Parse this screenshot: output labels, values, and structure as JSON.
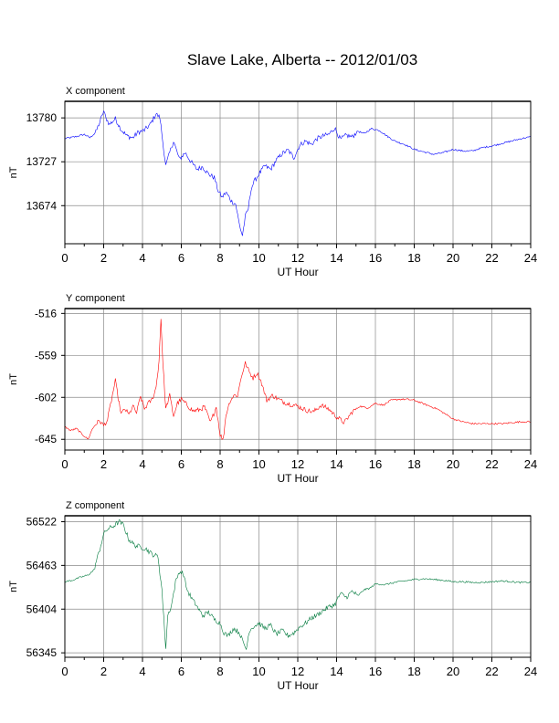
{
  "title": "Slave Lake, Alberta -- 2012/01/03",
  "chart_data": [
    {
      "type": "line",
      "panel_label": "X component",
      "xlabel": "UT Hour",
      "ylabel": "nT",
      "xlim": [
        0,
        24
      ],
      "xticks": [
        0,
        2,
        4,
        6,
        8,
        10,
        12,
        14,
        16,
        18,
        20,
        22,
        24
      ],
      "ylim": [
        13628,
        13800
      ],
      "yticks": [
        13674,
        13727,
        13780
      ],
      "grid": true,
      "color": "#0000ff",
      "series": [
        {
          "x": [
            0,
            0.5,
            1,
            1.3,
            1.6,
            1.8,
            2,
            2.1,
            2.3,
            2.6,
            2.9,
            3.2,
            3.5,
            3.8,
            4.1,
            4.4,
            4.7,
            4.9,
            5.05,
            5.2,
            5.4,
            5.6,
            5.9,
            6.2,
            6.5,
            6.8,
            7.1,
            7.4,
            7.7,
            7.9,
            8.1,
            8.3,
            8.6,
            8.8,
            9.0,
            9.15,
            9.3,
            9.45,
            9.6,
            9.8,
            10.0,
            10.3,
            10.6,
            10.9,
            11.2,
            11.5,
            11.8,
            12.1,
            12.4,
            12.7,
            13.0,
            13.3,
            13.6,
            13.9,
            14.2,
            14.5,
            14.8,
            15.1,
            15.4,
            15.8,
            16.2,
            16.6,
            17.0,
            17.5,
            18.0,
            18.5,
            19.0,
            19.5,
            20.0,
            20.5,
            21.0,
            21.5,
            22.0,
            22.5,
            23.0,
            23.5,
            24.0
          ],
          "values": [
            13755,
            13757,
            13760,
            13756,
            13763,
            13775,
            13788,
            13781,
            13772,
            13779,
            13766,
            13758,
            13756,
            13763,
            13765,
            13772,
            13785,
            13780,
            13750,
            13722,
            13738,
            13752,
            13730,
            13738,
            13727,
            13718,
            13721,
            13712,
            13708,
            13692,
            13684,
            13690,
            13679,
            13676,
            13650,
            13638,
            13661,
            13670,
            13695,
            13705,
            13712,
            13722,
            13718,
            13729,
            13737,
            13741,
            13732,
            13747,
            13752,
            13748,
            13755,
            13758,
            13760,
            13768,
            13754,
            13759,
            13757,
            13764,
            13761,
            13767,
            13765,
            13758,
            13752,
            13748,
            13742,
            13739,
            13736,
            13738,
            13742,
            13740,
            13740,
            13744,
            13746,
            13749,
            13752,
            13755,
            13757
          ]
        }
      ]
    },
    {
      "type": "line",
      "panel_label": "Y component",
      "xlabel": "UT Hour",
      "ylabel": "nT",
      "xlim": [
        0,
        24
      ],
      "xticks": [
        0,
        2,
        4,
        6,
        8,
        10,
        12,
        14,
        16,
        18,
        20,
        22,
        24
      ],
      "ylim": [
        -656,
        -511
      ],
      "yticks": [
        -645,
        -602,
        -559,
        -516
      ],
      "grid": true,
      "color": "#ff0000",
      "series": [
        {
          "x": [
            0,
            0.3,
            0.6,
            0.9,
            1.2,
            1.4,
            1.6,
            1.8,
            2.0,
            2.2,
            2.4,
            2.6,
            2.75,
            2.9,
            3.1,
            3.3,
            3.5,
            3.7,
            3.9,
            4.1,
            4.3,
            4.5,
            4.7,
            4.85,
            4.95,
            5.05,
            5.2,
            5.4,
            5.6,
            5.8,
            6.0,
            6.3,
            6.6,
            6.9,
            7.2,
            7.5,
            7.8,
            8.0,
            8.15,
            8.3,
            8.5,
            8.7,
            8.9,
            9.1,
            9.3,
            9.5,
            9.7,
            9.9,
            10.1,
            10.4,
            10.7,
            11.0,
            11.3,
            11.6,
            12.0,
            12.4,
            12.8,
            13.2,
            13.6,
            14.0,
            14.4,
            14.8,
            15.2,
            15.6,
            16.0,
            16.4,
            16.8,
            17.2,
            17.6,
            18.0,
            18.4,
            18.8,
            19.2,
            19.6,
            20.0,
            20.5,
            21.0,
            21.5,
            22.0,
            22.5,
            23.0,
            23.5,
            24.0
          ],
          "values": [
            -632,
            -636,
            -634,
            -640,
            -645,
            -635,
            -629,
            -626,
            -631,
            -625,
            -605,
            -585,
            -603,
            -619,
            -614,
            -620,
            -611,
            -618,
            -601,
            -614,
            -608,
            -604,
            -592,
            -565,
            -521,
            -567,
            -614,
            -600,
            -621,
            -608,
            -604,
            -610,
            -616,
            -615,
            -612,
            -628,
            -612,
            -640,
            -646,
            -620,
            -606,
            -600,
            -600,
            -580,
            -567,
            -576,
            -582,
            -577,
            -585,
            -605,
            -600,
            -604,
            -607,
            -609,
            -611,
            -615,
            -617,
            -610,
            -614,
            -622,
            -628,
            -617,
            -611,
            -613,
            -608,
            -610,
            -605,
            -604,
            -604,
            -605,
            -608,
            -611,
            -614,
            -619,
            -624,
            -627,
            -629,
            -629,
            -629,
            -629,
            -628,
            -627,
            -627
          ]
        }
      ]
    },
    {
      "type": "line",
      "panel_label": "Z component",
      "xlabel": "UT Hour",
      "ylabel": "nT",
      "xlim": [
        0,
        24
      ],
      "xticks": [
        0,
        2,
        4,
        6,
        8,
        10,
        12,
        14,
        16,
        18,
        20,
        22,
        24
      ],
      "ylim": [
        56339,
        56530
      ],
      "yticks": [
        56345,
        56404,
        56463,
        56522
      ],
      "grid": true,
      "color": "#007a3d",
      "series": [
        {
          "x": [
            0,
            0.4,
            0.8,
            1.2,
            1.5,
            1.8,
            2.0,
            2.2,
            2.5,
            2.8,
            3.0,
            3.3,
            3.6,
            3.9,
            4.2,
            4.5,
            4.8,
            5.0,
            5.1,
            5.2,
            5.3,
            5.5,
            5.7,
            5.9,
            6.1,
            6.3,
            6.5,
            6.8,
            7.1,
            7.4,
            7.7,
            8.0,
            8.2,
            8.4,
            8.7,
            9.0,
            9.2,
            9.35,
            9.5,
            9.7,
            10.0,
            10.3,
            10.6,
            10.9,
            11.2,
            11.5,
            11.8,
            12.1,
            12.4,
            12.7,
            13.0,
            13.3,
            13.6,
            13.9,
            14.2,
            14.5,
            14.8,
            15.1,
            15.4,
            15.7,
            16.0,
            16.5,
            17.0,
            17.5,
            18.0,
            18.5,
            19.0,
            19.5,
            20.0,
            20.5,
            21.0,
            21.5,
            22.0,
            22.5,
            23.0,
            23.5,
            24.0
          ],
          "values": [
            56441,
            56443,
            56447,
            56450,
            56457,
            56485,
            56505,
            56512,
            56516,
            56522,
            56518,
            56498,
            56490,
            56488,
            56485,
            56478,
            56475,
            56430,
            56390,
            56352,
            56395,
            56410,
            56440,
            56455,
            56452,
            56430,
            56420,
            56408,
            56395,
            56400,
            56390,
            56385,
            56372,
            56368,
            56378,
            56372,
            56358,
            56350,
            56375,
            56380,
            56385,
            56378,
            56382,
            56370,
            56375,
            56368,
            56372,
            56380,
            56385,
            56392,
            56396,
            56402,
            56407,
            56410,
            56425,
            56420,
            56428,
            56422,
            56430,
            56432,
            56438,
            56437,
            56440,
            56442,
            56444,
            56445,
            56444,
            56443,
            56441,
            56441,
            56440,
            56440,
            56441,
            56442,
            56441,
            56440,
            56440
          ]
        }
      ]
    }
  ]
}
